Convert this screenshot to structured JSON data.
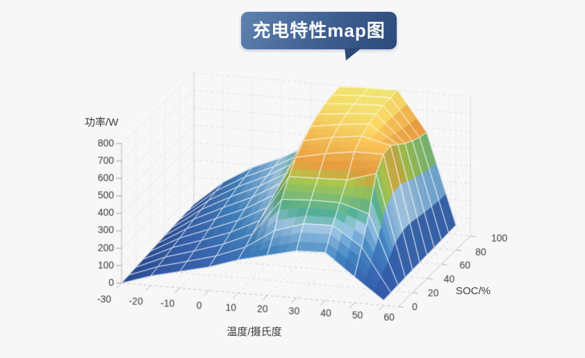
{
  "title": {
    "text": "充电特性map图"
  },
  "banner": {
    "gradient_from": "#5f83b1",
    "gradient_to": "#2c4a79",
    "text_color": "#ffffff"
  },
  "page": {
    "background": "#f7f7f8",
    "axis_text_color": "#3a3a3a"
  },
  "chart_data": {
    "type": "heatmap",
    "representation": "3d-surface",
    "title": "充电特性map图",
    "xlabel": "温度/摄氏度",
    "ylabel": "SOC/%",
    "zlabel": "功率/W",
    "x": [
      -30,
      -20,
      -10,
      0,
      10,
      20,
      30,
      40,
      50,
      60
    ],
    "y": [
      0,
      10,
      20,
      30,
      40,
      50,
      60,
      70,
      80,
      90,
      100
    ],
    "x_tick_labels": [
      "-30",
      "-20",
      "-10",
      "0",
      "10",
      "20",
      "30",
      "40",
      "50",
      "60"
    ],
    "y_tick_labels": [
      "0",
      "20",
      "40",
      "60",
      "80",
      "100"
    ],
    "y_tick_values": [
      0,
      20,
      40,
      60,
      80,
      100
    ],
    "z_tick_labels": [
      "0",
      "100",
      "200",
      "300",
      "400",
      "500",
      "600",
      "700",
      "800"
    ],
    "zlim": [
      0,
      800
    ],
    "grid": true,
    "legend": "none",
    "z_grid_rows": "x (temperature)",
    "z_grid_cols": "y (SOC)",
    "z_grid": [
      [
        0,
        5,
        10,
        15,
        20,
        25,
        30,
        34,
        38,
        42,
        45
      ],
      [
        55,
        68,
        82,
        96,
        110,
        124,
        138,
        152,
        164,
        176,
        186
      ],
      [
        95,
        112,
        132,
        152,
        174,
        196,
        218,
        238,
        256,
        272,
        285
      ],
      [
        135,
        158,
        185,
        212,
        240,
        266,
        292,
        315,
        332,
        346,
        356
      ],
      [
        190,
        222,
        258,
        294,
        328,
        360,
        388,
        410,
        426,
        436,
        442
      ],
      [
        230,
        330,
        470,
        560,
        630,
        685,
        725,
        755,
        775,
        786,
        792
      ],
      [
        270,
        385,
        480,
        565,
        665,
        718,
        752,
        774,
        788,
        795,
        799
      ],
      [
        275,
        390,
        480,
        570,
        690,
        740,
        770,
        786,
        794,
        798,
        800
      ],
      [
        150,
        280,
        430,
        620,
        690,
        700,
        665,
        630,
        605,
        585,
        572
      ],
      [
        30,
        33,
        36,
        39,
        42,
        44,
        46,
        48,
        50,
        52,
        55
      ]
    ],
    "colormap": [
      [
        0,
        "#2b4d9b"
      ],
      [
        150,
        "#3a69b4"
      ],
      [
        245,
        "#4285c3"
      ],
      [
        330,
        "#80b4de"
      ],
      [
        372,
        "#a9cfec"
      ],
      [
        430,
        "#52b39b"
      ],
      [
        555,
        "#aecb4e"
      ],
      [
        615,
        "#f0a041"
      ],
      [
        715,
        "#f6c155"
      ],
      [
        800,
        "#f7e973"
      ]
    ]
  }
}
